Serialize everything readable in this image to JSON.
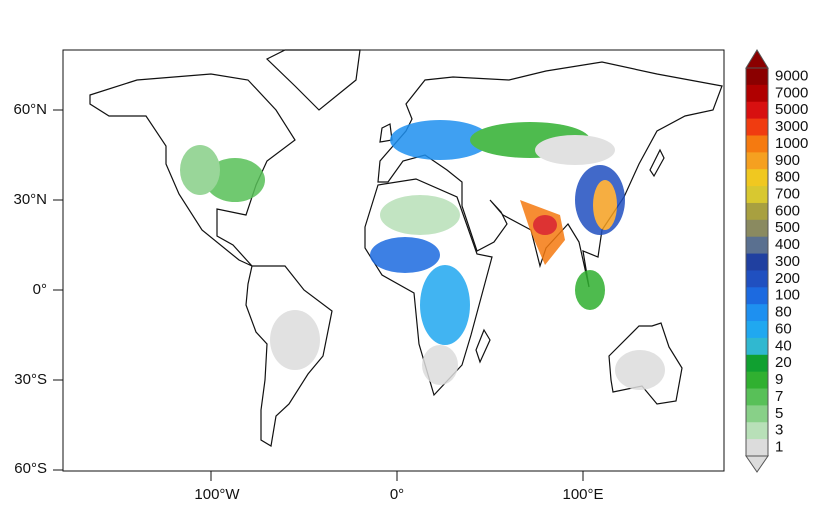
{
  "map": {
    "lat_labels": [
      "60°N",
      "30°N",
      "0°",
      "30°S",
      "60°S"
    ],
    "lon_labels": [
      "100°W",
      "0°",
      "100°E"
    ],
    "colorbar": {
      "levels": [
        9000,
        7000,
        5000,
        3000,
        1000,
        900,
        800,
        700,
        600,
        500,
        400,
        300,
        200,
        100,
        80,
        60,
        40,
        20,
        9,
        7,
        5,
        3,
        1
      ],
      "colors": [
        "#8b0000",
        "#b00000",
        "#d81010",
        "#f03c10",
        "#f57a10",
        "#f5a020",
        "#f0c820",
        "#d8c830",
        "#a8a040",
        "#8a8a60",
        "#5a7090",
        "#2040a0",
        "#2050c0",
        "#1c6ae0",
        "#1e90f0",
        "#20a8f0",
        "#30b8d0",
        "#10a030",
        "#30b030",
        "#58c058",
        "#88d088",
        "#b8e0b8",
        "#dcdcdc"
      ]
    }
  }
}
